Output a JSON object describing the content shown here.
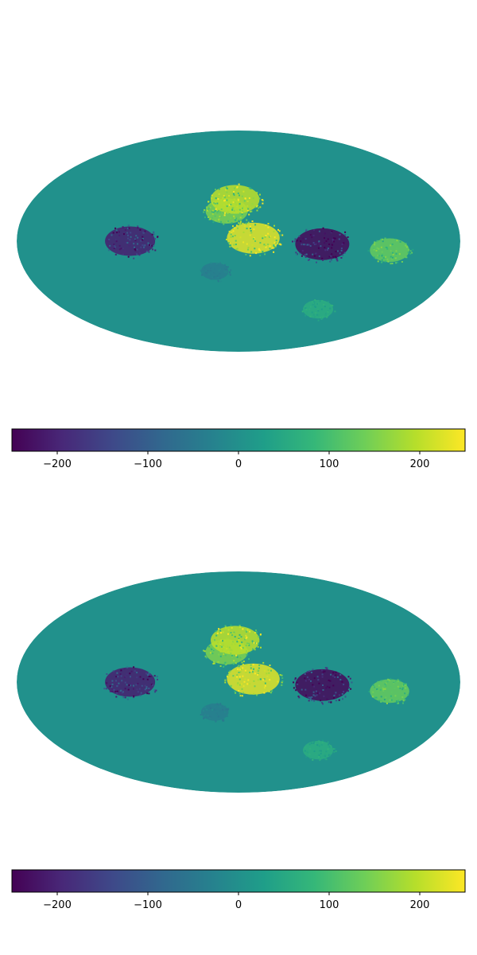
{
  "colors": {
    "viridis": [
      "#440154",
      "#482878",
      "#3e4989",
      "#31688e",
      "#26828e",
      "#1f9e89",
      "#35b779",
      "#6ece58",
      "#b5de2b",
      "#fde725"
    ],
    "background_value_color": "#21918c"
  },
  "chart_data": [
    {
      "type": "heatmap",
      "projection": "mollweide",
      "title": "",
      "colormap": "viridis",
      "vmin": -250,
      "vmax": 250,
      "colorbar": {
        "ticks": [
          -200,
          -100,
          0,
          100,
          200
        ],
        "tick_labels": [
          "−200",
          "−100",
          "0",
          "100",
          "200"
        ]
      },
      "features": [
        {
          "kind": "positive-patch",
          "lon": -12,
          "lat": 2,
          "value": 230
        },
        {
          "kind": "positive-patch",
          "lon": 10,
          "lat": 20,
          "value": 150
        },
        {
          "kind": "positive-patch",
          "lon": 3,
          "lat": 28,
          "value": 200
        },
        {
          "kind": "negative-patch",
          "lon": -68,
          "lat": -2,
          "value": -240
        },
        {
          "kind": "positive-patch",
          "lon": -123,
          "lat": -6,
          "value": 130
        },
        {
          "kind": "positive-patch",
          "lon": -82,
          "lat": -47,
          "value": 60
        },
        {
          "kind": "negative-patch",
          "lon": 88,
          "lat": 0,
          "value": -210
        },
        {
          "kind": "negative-patch",
          "lon": 20,
          "lat": -20,
          "value": -40
        }
      ]
    },
    {
      "type": "heatmap",
      "projection": "mollweide",
      "title": "",
      "colormap": "viridis",
      "vmin": -250,
      "vmax": 250,
      "colorbar": {
        "ticks": [
          -200,
          -100,
          0,
          100,
          200
        ],
        "tick_labels": [
          "−200",
          "−100",
          "0",
          "100",
          "200"
        ]
      },
      "features": [
        {
          "kind": "positive-patch",
          "lon": -12,
          "lat": 2,
          "value": 230
        },
        {
          "kind": "positive-patch",
          "lon": 10,
          "lat": 20,
          "value": 150
        },
        {
          "kind": "positive-patch",
          "lon": 3,
          "lat": 28,
          "value": 200
        },
        {
          "kind": "negative-patch",
          "lon": -68,
          "lat": -2,
          "value": -240
        },
        {
          "kind": "positive-patch",
          "lon": -123,
          "lat": -6,
          "value": 130
        },
        {
          "kind": "positive-patch",
          "lon": -82,
          "lat": -47,
          "value": 60
        },
        {
          "kind": "negative-patch",
          "lon": 88,
          "lat": 0,
          "value": -210
        },
        {
          "kind": "negative-patch",
          "lon": 20,
          "lat": -20,
          "value": -40
        }
      ]
    }
  ]
}
